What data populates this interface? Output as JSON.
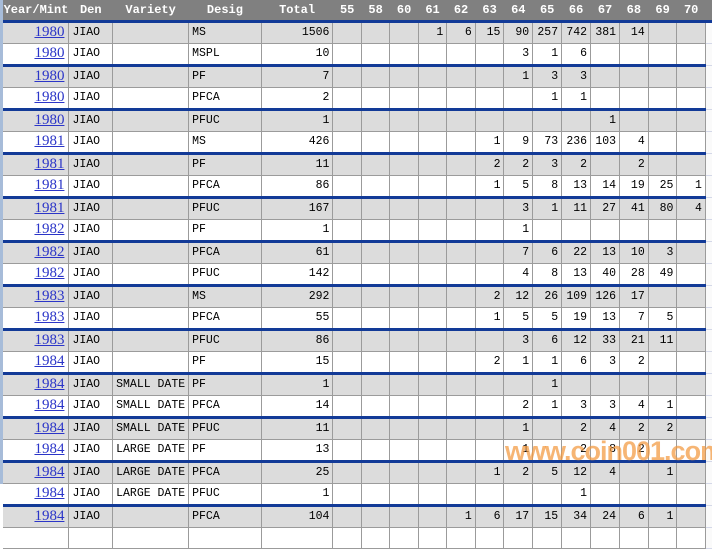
{
  "watermark": "www.coin001.com",
  "colors": {
    "header_bg": "#808080",
    "row_alt_gray": "#dcdcdc",
    "grid_line": "#9b9b9b",
    "separator_blue": "#123a97",
    "link_blue": "#2b35c8",
    "left_edge_strip": "#a7bcd9",
    "watermark_orange": "#f2983e"
  },
  "table": {
    "columns": [
      "Year/Mint",
      "Den",
      "Variety",
      "Desig",
      "Total",
      "55",
      "58",
      "60",
      "61",
      "62",
      "63",
      "64",
      "65",
      "66",
      "67",
      "68",
      "69",
      "70"
    ],
    "grade_columns": [
      "55",
      "58",
      "60",
      "61",
      "62",
      "63",
      "64",
      "65",
      "66",
      "67",
      "68",
      "69",
      "70"
    ],
    "rows": [
      {
        "year": "1980",
        "den": "JIAO",
        "variety": "",
        "desig": "MS",
        "total": "1506",
        "grades": {
          "61": "1",
          "62": "6",
          "63": "15",
          "64": "90",
          "65": "257",
          "66": "742",
          "67": "381",
          "68": "14"
        }
      },
      {
        "year": "1980",
        "den": "JIAO",
        "variety": "",
        "desig": "MSPL",
        "total": "10",
        "grades": {
          "64": "3",
          "65": "1",
          "66": "6"
        }
      },
      {
        "year": "1980",
        "den": "JIAO",
        "variety": "",
        "desig": "PF",
        "total": "7",
        "grades": {
          "64": "1",
          "65": "3",
          "66": "3"
        }
      },
      {
        "year": "1980",
        "den": "JIAO",
        "variety": "",
        "desig": "PFCA",
        "total": "2",
        "grades": {
          "65": "1",
          "66": "1"
        }
      },
      {
        "year": "1980",
        "den": "JIAO",
        "variety": "",
        "desig": "PFUC",
        "total": "1",
        "grades": {
          "67": "1"
        }
      },
      {
        "year": "1981",
        "den": "JIAO",
        "variety": "",
        "desig": "MS",
        "total": "426",
        "grades": {
          "63": "1",
          "64": "9",
          "65": "73",
          "66": "236",
          "67": "103",
          "68": "4"
        }
      },
      {
        "year": "1981",
        "den": "JIAO",
        "variety": "",
        "desig": "PF",
        "total": "11",
        "grades": {
          "63": "2",
          "64": "2",
          "65": "3",
          "66": "2",
          "68": "2"
        }
      },
      {
        "year": "1981",
        "den": "JIAO",
        "variety": "",
        "desig": "PFCA",
        "total": "86",
        "grades": {
          "63": "1",
          "64": "5",
          "65": "8",
          "66": "13",
          "67": "14",
          "68": "19",
          "69": "25",
          "70": "1"
        }
      },
      {
        "year": "1981",
        "den": "JIAO",
        "variety": "",
        "desig": "PFUC",
        "total": "167",
        "grades": {
          "64": "3",
          "65": "1",
          "66": "11",
          "67": "27",
          "68": "41",
          "69": "80",
          "70": "4"
        }
      },
      {
        "year": "1982",
        "den": "JIAO",
        "variety": "",
        "desig": "PF",
        "total": "1",
        "grades": {
          "64": "1"
        }
      },
      {
        "year": "1982",
        "den": "JIAO",
        "variety": "",
        "desig": "PFCA",
        "total": "61",
        "grades": {
          "64": "7",
          "65": "6",
          "66": "22",
          "67": "13",
          "68": "10",
          "69": "3"
        }
      },
      {
        "year": "1982",
        "den": "JIAO",
        "variety": "",
        "desig": "PFUC",
        "total": "142",
        "grades": {
          "64": "4",
          "65": "8",
          "66": "13",
          "67": "40",
          "68": "28",
          "69": "49"
        }
      },
      {
        "year": "1983",
        "den": "JIAO",
        "variety": "",
        "desig": "MS",
        "total": "292",
        "grades": {
          "63": "2",
          "64": "12",
          "65": "26",
          "66": "109",
          "67": "126",
          "68": "17"
        }
      },
      {
        "year": "1983",
        "den": "JIAO",
        "variety": "",
        "desig": "PFCA",
        "total": "55",
        "grades": {
          "63": "1",
          "64": "5",
          "65": "5",
          "66": "19",
          "67": "13",
          "68": "7",
          "69": "5"
        }
      },
      {
        "year": "1983",
        "den": "JIAO",
        "variety": "",
        "desig": "PFUC",
        "total": "86",
        "grades": {
          "64": "3",
          "65": "6",
          "66": "12",
          "67": "33",
          "68": "21",
          "69": "11"
        }
      },
      {
        "year": "1984",
        "den": "JIAO",
        "variety": "",
        "desig": "PF",
        "total": "15",
        "grades": {
          "63": "2",
          "64": "1",
          "65": "1",
          "66": "6",
          "67": "3",
          "68": "2"
        }
      },
      {
        "year": "1984",
        "den": "JIAO",
        "variety": "SMALL DATE",
        "desig": "PF",
        "total": "1",
        "grades": {
          "65": "1"
        }
      },
      {
        "year": "1984",
        "den": "JIAO",
        "variety": "SMALL DATE",
        "desig": "PFCA",
        "total": "14",
        "grades": {
          "64": "2",
          "65": "1",
          "66": "3",
          "67": "3",
          "68": "4",
          "69": "1"
        }
      },
      {
        "year": "1984",
        "den": "JIAO",
        "variety": "SMALL DATE",
        "desig": "PFUC",
        "total": "11",
        "grades": {
          "64": "1",
          "66": "2",
          "67": "4",
          "68": "2",
          "69": "2"
        }
      },
      {
        "year": "1984",
        "den": "JIAO",
        "variety": "LARGE DATE",
        "desig": "PF",
        "total": "13",
        "grades": {
          "64": "1",
          "66": "2",
          "67": "8",
          "68": "2"
        }
      },
      {
        "year": "1984",
        "den": "JIAO",
        "variety": "LARGE DATE",
        "desig": "PFCA",
        "total": "25",
        "grades": {
          "63": "1",
          "64": "2",
          "65": "5",
          "66": "12",
          "67": "4",
          "69": "1"
        }
      },
      {
        "year": "1984",
        "den": "JIAO",
        "variety": "LARGE DATE",
        "desig": "PFUC",
        "total": "1",
        "grades": {
          "66": "1"
        }
      },
      {
        "year": "1984",
        "den": "JIAO",
        "variety": "",
        "desig": "PFCA",
        "total": "104",
        "grades": {
          "62": "1",
          "63": "6",
          "64": "17",
          "65": "15",
          "66": "34",
          "67": "24",
          "68": "6",
          "69": "1"
        }
      }
    ]
  }
}
